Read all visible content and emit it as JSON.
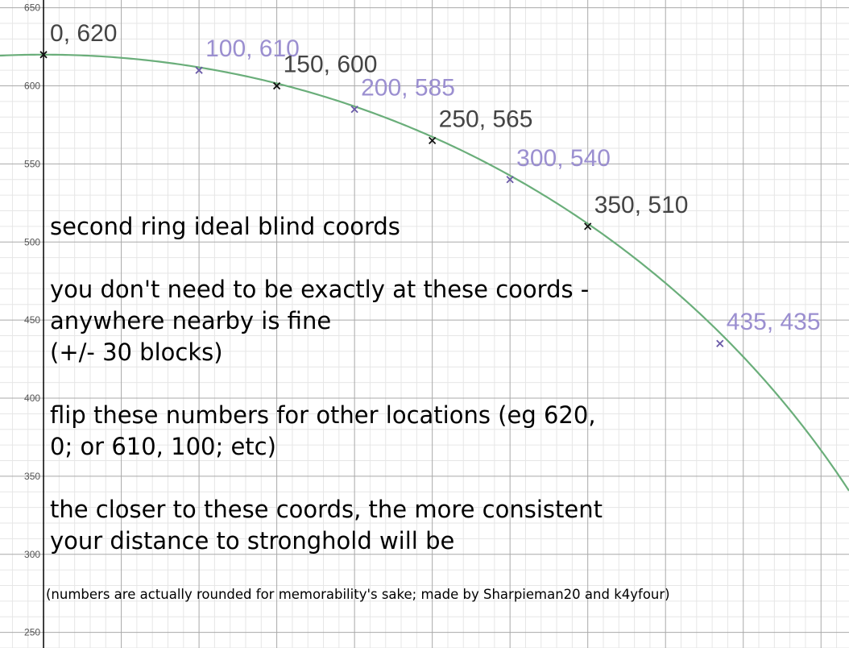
{
  "chart_data": {
    "type": "scatter",
    "title": "second ring ideal blind coords",
    "xlim": [
      -28,
      518
    ],
    "ylim": [
      240,
      655
    ],
    "y_ticks": [
      250,
      300,
      350,
      400,
      450,
      500,
      550,
      600,
      650
    ],
    "grid": true,
    "curve_color": "#6aae7a",
    "points": [
      {
        "x": 0,
        "y": 620,
        "label": "0, 620",
        "color": "#111111",
        "label_color": "#444444"
      },
      {
        "x": 100,
        "y": 610,
        "label": "100, 610",
        "color": "#6a5aa8",
        "label_color": "#9b8fd0"
      },
      {
        "x": 150,
        "y": 600,
        "label": "150, 600",
        "color": "#111111",
        "label_color": "#444444"
      },
      {
        "x": 200,
        "y": 585,
        "label": "200, 585",
        "color": "#6a5aa8",
        "label_color": "#9b8fd0"
      },
      {
        "x": 250,
        "y": 565,
        "label": "250, 565",
        "color": "#111111",
        "label_color": "#444444"
      },
      {
        "x": 300,
        "y": 540,
        "label": "300, 540",
        "color": "#6a5aa8",
        "label_color": "#9b8fd0"
      },
      {
        "x": 350,
        "y": 510,
        "label": "350, 510",
        "color": "#111111",
        "label_color": "#444444"
      },
      {
        "x": 435,
        "y": 435,
        "label": "435, 435",
        "color": "#6a5aa8",
        "label_color": "#9b8fd0"
      }
    ]
  },
  "notes": {
    "title": "second ring ideal blind coords",
    "para1_line1": "you don't need to be exactly at these coords -",
    "para1_line2": "anywhere nearby is fine",
    "para1_line3": "(+/- 30 blocks)",
    "para2_line1": "flip these numbers for other locations (eg 620,",
    "para2_line2": "0; or 610, 100; etc)",
    "para3_line1": "the closer to these coords, the more consistent",
    "para3_line2": "your distance to stronghold will be",
    "credit": "(numbers are actually rounded for memorability's sake; made by Sharpieman20 and k4yfour)"
  }
}
